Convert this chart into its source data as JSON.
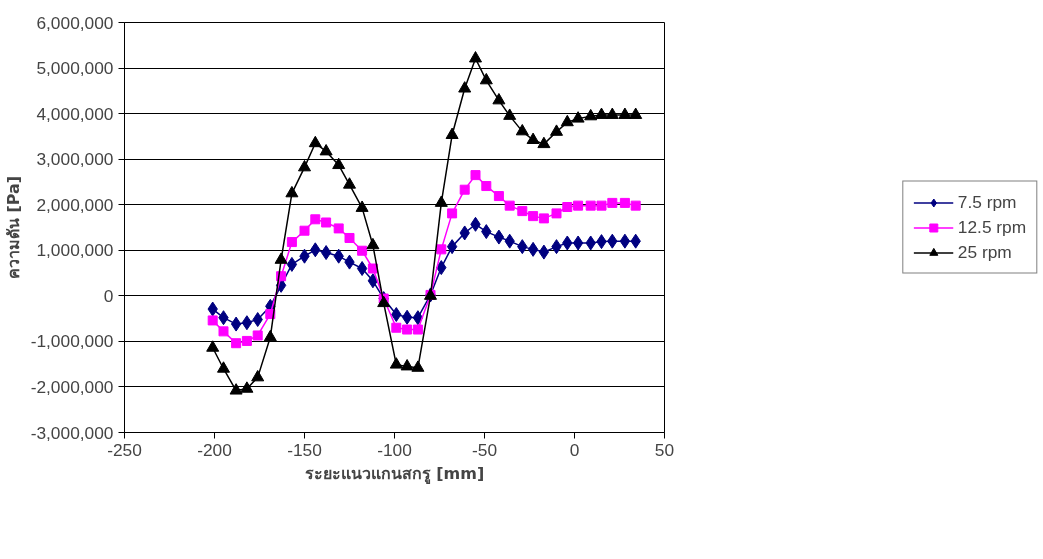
{
  "chart_data": {
    "type": "line",
    "xlabel": "ระยะแนวแกนสกรู [mm]",
    "ylabel": "ความดัน [Pa]",
    "x": [
      -201,
      -195,
      -188,
      -182,
      -176,
      -169,
      -163,
      -157,
      -150,
      -144,
      -138,
      -131,
      -125,
      -118,
      -112,
      -106,
      -99,
      -93,
      -87,
      -80,
      -74,
      -68,
      -61,
      -55,
      -49,
      -42,
      -36,
      -29,
      -23,
      -17,
      -10,
      -4,
      2,
      9,
      15,
      21,
      28,
      34
    ],
    "series": [
      {
        "name": "7.5 rpm",
        "color": "#000080",
        "marker": "diamond",
        "values": [
          -290000,
          -480000,
          -620000,
          -590000,
          -520000,
          -230000,
          230000,
          690000,
          870000,
          1010000,
          950000,
          870000,
          740000,
          600000,
          330000,
          -60000,
          -410000,
          -470000,
          -480000,
          20000,
          620000,
          1080000,
          1380000,
          1570000,
          1410000,
          1290000,
          1200000,
          1080000,
          1020000,
          960000,
          1080000,
          1160000,
          1160000,
          1160000,
          1190000,
          1200000,
          1200000,
          1200000
        ]
      },
      {
        "name": "12.5 rpm",
        "color": "#ff00ff",
        "marker": "square",
        "values": [
          -540000,
          -780000,
          -1040000,
          -990000,
          -870000,
          -400000,
          430000,
          1180000,
          1430000,
          1680000,
          1610000,
          1480000,
          1270000,
          990000,
          600000,
          -60000,
          -700000,
          -740000,
          -740000,
          20000,
          1020000,
          1810000,
          2330000,
          2650000,
          2410000,
          2190000,
          1980000,
          1860000,
          1750000,
          1700000,
          1810000,
          1950000,
          1980000,
          1980000,
          1980000,
          2040000,
          2040000,
          1980000
        ]
      },
      {
        "name": "25 rpm",
        "color": "#000000",
        "marker": "triangle",
        "values": [
          -1140000,
          -1600000,
          -2080000,
          -2040000,
          -1790000,
          -910000,
          790000,
          2250000,
          2820000,
          3350000,
          3170000,
          2870000,
          2440000,
          1930000,
          1110000,
          -160000,
          -1510000,
          -1550000,
          -1580000,
          0,
          2040000,
          3530000,
          4550000,
          5210000,
          4730000,
          4290000,
          3950000,
          3610000,
          3420000,
          3330000,
          3600000,
          3810000,
          3890000,
          3940000,
          3970000,
          3970000,
          3970000,
          3970000
        ]
      }
    ],
    "xlim": [
      -250,
      50
    ],
    "xticks": [
      -250,
      -200,
      -150,
      -100,
      -50,
      0,
      50
    ],
    "ylim": [
      -3000000,
      6000000
    ],
    "yticks": [
      {
        "value": -3000000,
        "label": "-3,000,000"
      },
      {
        "value": -2000000,
        "label": "-2,000,000"
      },
      {
        "value": -1000000,
        "label": "-1,000,000"
      },
      0,
      {
        "value": 1000000,
        "label": "1,000,000"
      },
      {
        "value": 2000000,
        "label": "2,000,000"
      },
      {
        "value": 3000000,
        "label": "3,000,000"
      },
      {
        "value": 4000000,
        "label": "4,000,000"
      },
      {
        "value": 5000000,
        "label": "5,000,000"
      },
      {
        "value": 6000000,
        "label": "6,000,000"
      }
    ],
    "grid": "y",
    "legend": "right",
    "line_style": "solid"
  }
}
